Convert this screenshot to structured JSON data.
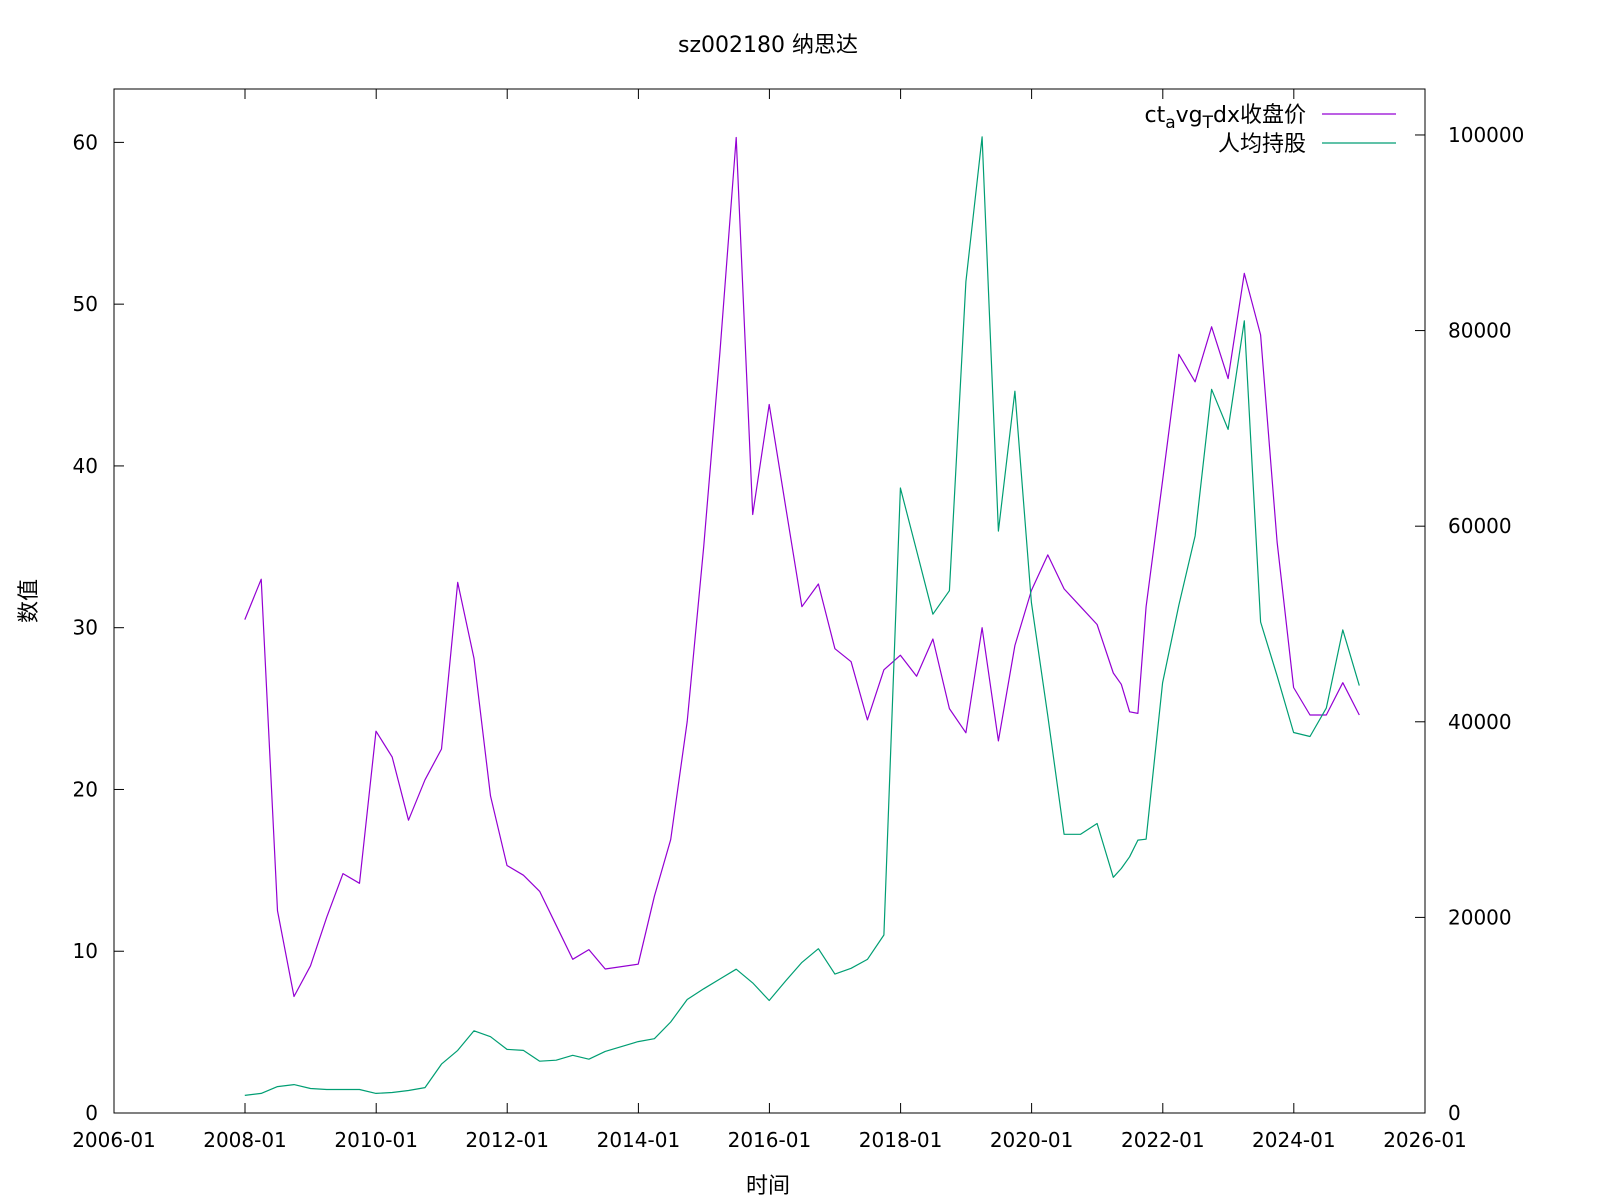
{
  "chart_data": {
    "type": "line",
    "title": "sz002180 纳思达",
    "xlabel": "时间",
    "ylabel": "数值",
    "x_axis": {
      "kind": "date",
      "range": [
        "2006-01",
        "2026-01"
      ],
      "ticks": [
        "2006-01",
        "2008-01",
        "2010-01",
        "2012-01",
        "2014-01",
        "2016-01",
        "2018-01",
        "2020-01",
        "2022-01",
        "2024-01",
        "2026-01"
      ]
    },
    "y_left": {
      "range": [
        0,
        63.3
      ],
      "ticks": [
        0,
        10,
        20,
        30,
        40,
        50,
        60
      ]
    },
    "y_right": {
      "range": [
        0,
        104700
      ],
      "ticks": [
        0,
        20000,
        40000,
        60000,
        80000,
        100000
      ]
    },
    "grid": false,
    "legend_position": "top-right",
    "colors": {
      "price": "#9400d3",
      "holding": "#009e73"
    },
    "series": [
      {
        "name": "ctavgTdx收盘价",
        "legend_label": {
          "pre": "ct",
          "sub1": "a",
          "mid": "vg",
          "sub2": "T",
          "post": "dx收盘价"
        },
        "axis": "left",
        "color": "#9400d3",
        "points": [
          [
            "2007-12-31",
            30.5
          ],
          [
            "2008-03-31",
            33.0
          ],
          [
            "2008-06-30",
            12.5
          ],
          [
            "2008-09-30",
            7.2
          ],
          [
            "2008-12-31",
            9.1
          ],
          [
            "2009-03-31",
            12.1
          ],
          [
            "2009-06-30",
            14.8
          ],
          [
            "2009-09-30",
            14.2
          ],
          [
            "2009-12-31",
            23.6
          ],
          [
            "2010-03-31",
            22.0
          ],
          [
            "2010-06-30",
            18.1
          ],
          [
            "2010-09-30",
            20.6
          ],
          [
            "2010-12-31",
            22.5
          ],
          [
            "2011-03-31",
            32.8
          ],
          [
            "2011-06-30",
            28.1
          ],
          [
            "2011-09-30",
            19.6
          ],
          [
            "2011-12-31",
            15.3
          ],
          [
            "2012-03-31",
            14.7
          ],
          [
            "2012-06-30",
            13.7
          ],
          [
            "2012-09-30",
            11.6
          ],
          [
            "2012-12-31",
            9.5
          ],
          [
            "2013-03-31",
            10.1
          ],
          [
            "2013-06-30",
            8.9
          ],
          [
            "2013-12-31",
            9.2
          ],
          [
            "2014-03-31",
            13.4
          ],
          [
            "2014-06-30",
            16.9
          ],
          [
            "2014-09-30",
            24.2
          ],
          [
            "2014-12-31",
            35.0
          ],
          [
            "2015-03-31",
            47.0
          ],
          [
            "2015-06-30",
            60.3
          ],
          [
            "2015-09-30",
            37.0
          ],
          [
            "2015-12-31",
            43.8
          ],
          [
            "2016-03-31",
            37.5
          ],
          [
            "2016-06-30",
            31.3
          ],
          [
            "2016-09-30",
            32.7
          ],
          [
            "2016-12-31",
            28.7
          ],
          [
            "2017-03-31",
            27.9
          ],
          [
            "2017-06-30",
            24.3
          ],
          [
            "2017-09-30",
            27.4
          ],
          [
            "2017-12-31",
            28.3
          ],
          [
            "2018-03-31",
            27.0
          ],
          [
            "2018-06-30",
            29.3
          ],
          [
            "2018-09-30",
            25.0
          ],
          [
            "2018-12-31",
            23.5
          ],
          [
            "2019-03-31",
            30.0
          ],
          [
            "2019-06-30",
            23.0
          ],
          [
            "2019-09-30",
            28.9
          ],
          [
            "2019-12-31",
            32.3
          ],
          [
            "2020-03-31",
            34.5
          ],
          [
            "2020-06-30",
            32.4
          ],
          [
            "2020-09-30",
            31.3
          ],
          [
            "2020-12-31",
            30.2
          ],
          [
            "2021-03-31",
            27.2
          ],
          [
            "2021-05-15",
            26.5
          ],
          [
            "2021-06-30",
            24.8
          ],
          [
            "2021-08-15",
            24.7
          ],
          [
            "2021-09-30",
            31.3
          ],
          [
            "2021-12-31",
            39.1
          ],
          [
            "2022-03-31",
            46.9
          ],
          [
            "2022-06-30",
            45.2
          ],
          [
            "2022-09-30",
            48.6
          ],
          [
            "2022-12-31",
            45.4
          ],
          [
            "2023-03-31",
            51.9
          ],
          [
            "2023-06-30",
            48.1
          ],
          [
            "2023-09-30",
            35.3
          ],
          [
            "2023-12-31",
            26.3
          ],
          [
            "2024-03-31",
            24.6
          ],
          [
            "2024-06-30",
            24.6
          ],
          [
            "2024-09-30",
            26.6
          ],
          [
            "2024-12-31",
            24.6
          ]
        ]
      },
      {
        "name": "人均持股",
        "axis": "right",
        "color": "#009e73",
        "points": [
          [
            "2007-12-31",
            1800
          ],
          [
            "2008-03-31",
            2000
          ],
          [
            "2008-06-30",
            2700
          ],
          [
            "2008-09-30",
            2900
          ],
          [
            "2008-12-31",
            2500
          ],
          [
            "2009-03-31",
            2400
          ],
          [
            "2009-06-30",
            2400
          ],
          [
            "2009-09-30",
            2400
          ],
          [
            "2009-12-31",
            2000
          ],
          [
            "2010-03-31",
            2100
          ],
          [
            "2010-06-30",
            2300
          ],
          [
            "2010-09-30",
            2600
          ],
          [
            "2010-12-31",
            5000
          ],
          [
            "2011-03-31",
            6400
          ],
          [
            "2011-06-30",
            8400
          ],
          [
            "2011-09-30",
            7800
          ],
          [
            "2011-12-31",
            6500
          ],
          [
            "2012-03-31",
            6400
          ],
          [
            "2012-06-30",
            5300
          ],
          [
            "2012-09-30",
            5400
          ],
          [
            "2012-12-31",
            5900
          ],
          [
            "2013-03-31",
            5500
          ],
          [
            "2013-06-30",
            6300
          ],
          [
            "2013-12-31",
            7300
          ],
          [
            "2014-03-31",
            7600
          ],
          [
            "2014-06-30",
            9300
          ],
          [
            "2014-09-30",
            11600
          ],
          [
            "2014-12-31",
            12700
          ],
          [
            "2015-03-31",
            13700
          ],
          [
            "2015-06-30",
            14700
          ],
          [
            "2015-09-30",
            13300
          ],
          [
            "2015-12-31",
            11500
          ],
          [
            "2016-03-31",
            13500
          ],
          [
            "2016-06-30",
            15400
          ],
          [
            "2016-09-30",
            16800
          ],
          [
            "2016-12-31",
            14200
          ],
          [
            "2017-03-31",
            14800
          ],
          [
            "2017-06-30",
            15700
          ],
          [
            "2017-09-30",
            18200
          ],
          [
            "2017-12-31",
            63900
          ],
          [
            "2018-03-31",
            57500
          ],
          [
            "2018-06-30",
            51000
          ],
          [
            "2018-09-30",
            53400
          ],
          [
            "2018-12-31",
            85000
          ],
          [
            "2019-03-31",
            99800
          ],
          [
            "2019-06-30",
            59500
          ],
          [
            "2019-09-30",
            73800
          ],
          [
            "2019-12-31",
            52200
          ],
          [
            "2020-03-31",
            40600
          ],
          [
            "2020-06-30",
            28500
          ],
          [
            "2020-09-30",
            28500
          ],
          [
            "2020-12-31",
            29600
          ],
          [
            "2021-03-31",
            24100
          ],
          [
            "2021-05-15",
            25000
          ],
          [
            "2021-06-30",
            26200
          ],
          [
            "2021-08-15",
            27900
          ],
          [
            "2021-09-30",
            28000
          ],
          [
            "2021-12-31",
            44000
          ],
          [
            "2022-03-31",
            51900
          ],
          [
            "2022-06-30",
            59000
          ],
          [
            "2022-09-30",
            74000
          ],
          [
            "2022-12-31",
            69900
          ],
          [
            "2023-03-31",
            81000
          ],
          [
            "2023-06-30",
            50200
          ],
          [
            "2023-09-30",
            44700
          ],
          [
            "2023-12-31",
            38900
          ],
          [
            "2024-03-31",
            38500
          ],
          [
            "2024-06-30",
            41400
          ],
          [
            "2024-09-30",
            49400
          ],
          [
            "2024-12-31",
            43700
          ]
        ]
      }
    ]
  }
}
